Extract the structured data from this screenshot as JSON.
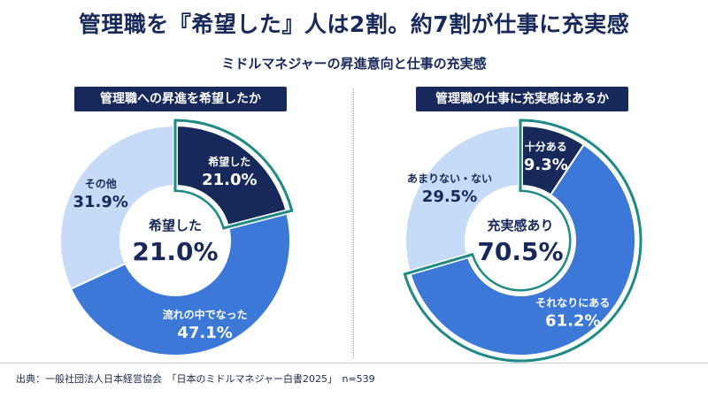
{
  "header": {
    "title": "管理職を『希望した』人は2割。約7割が仕事に充実感",
    "subtitle": "ミドルマネジャーの昇進意向と仕事の充実感"
  },
  "footer": {
    "source": "出典：一般社団法人日本経営協会　「日本のミドルマネジャー白書2025」　n=539"
  },
  "colors": {
    "navy": "#16295a",
    "blue": "#3b78d8",
    "light_blue": "#c6dbf7",
    "teal_outline": "#1e8a86",
    "white": "#ffffff"
  },
  "chart_data": [
    {
      "type": "pie",
      "title": "管理職への昇進を希望したか",
      "center_label": "希望した",
      "center_value": "21.0%",
      "slices": [
        {
          "label": "希望した",
          "value": 21.0,
          "display": "21.0%",
          "color": "#16295a",
          "highlight": true
        },
        {
          "label": "流れの中でなった",
          "value": 47.1,
          "display": "47.1%",
          "color": "#3b78d8",
          "highlight": false
        },
        {
          "label": "その他",
          "value": 31.9,
          "display": "31.9%",
          "color": "#c6dbf7",
          "highlight": false
        }
      ]
    },
    {
      "type": "pie",
      "title": "管理職の仕事に充実感はあるか",
      "center_label": "充実感あり",
      "center_value": "70.5%",
      "slices": [
        {
          "label": "十分ある",
          "value": 9.3,
          "display": "9.3%",
          "color": "#16295a",
          "highlight": true
        },
        {
          "label": "それなりにある",
          "value": 61.2,
          "display": "61.2%",
          "color": "#3b78d8",
          "highlight": true
        },
        {
          "label": "あまりない・ない",
          "value": 29.5,
          "display": "29.5%",
          "color": "#c6dbf7",
          "highlight": false
        }
      ]
    }
  ]
}
